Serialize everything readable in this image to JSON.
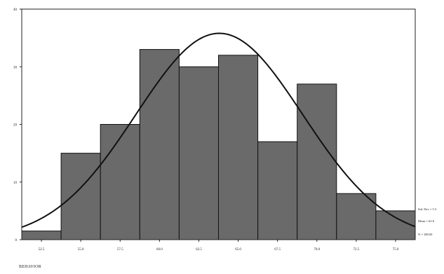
{
  "chart_data": {
    "type": "bar",
    "title": "",
    "xlabel": "BEHAVIOR",
    "ylabel": "",
    "categories": [
      "52.5",
      "55.0",
      "57.5",
      "60.0",
      "62.5",
      "65.0",
      "67.5",
      "70.0",
      "72.5",
      "75.0"
    ],
    "values": [
      1.5,
      15,
      20,
      33,
      30,
      32,
      17,
      27,
      8,
      5
    ],
    "ylim": [
      0,
      40
    ],
    "yticks": [
      "0",
      "10",
      "20",
      "30",
      "40"
    ],
    "normal_curve": {
      "mean": 63.8,
      "std_dev": 5.3,
      "peak": 35.8,
      "x_range": [
        51.25,
        76.25
      ]
    },
    "legend_position": "bottom-right",
    "stats": [
      "Std. Dev = 5.3",
      "Mean = 63.8",
      "N = 188.00"
    ],
    "grid": false
  },
  "colors": {
    "bar_fill": "#6a6a6a",
    "bar_stroke": "#111111",
    "curve": "#111111"
  }
}
